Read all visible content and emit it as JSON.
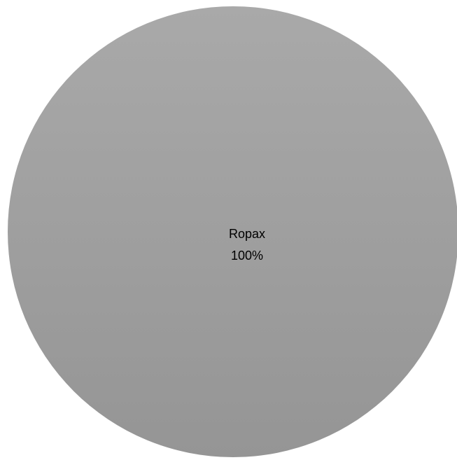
{
  "chart_data": {
    "type": "pie",
    "categories": [
      "Ropax"
    ],
    "values": [
      100
    ],
    "data_labels": [
      {
        "category": "Ropax",
        "percent": "100%"
      }
    ],
    "title": "",
    "legend": "none",
    "colors": {
      "slice_top": "#a9a9a9",
      "slice_bottom": "#959595",
      "label_text": "#000000",
      "background": "#ffffff"
    }
  }
}
